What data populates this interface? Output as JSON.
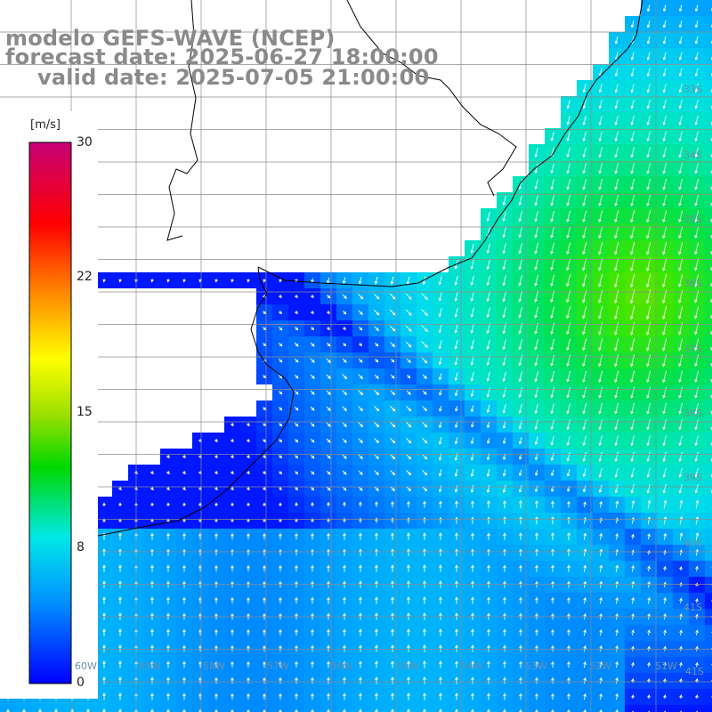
{
  "title": {
    "line1": "modelo GEFS-WAVE (NCEP)",
    "line2": "forecast date: 2025-06-27 18:00:00",
    "line3": "valid date: 2025-07-05 21:00:00"
  },
  "colorbar": {
    "unit": "[m/s]",
    "ticks": [
      "30",
      "22",
      "15",
      "8",
      "0"
    ],
    "tick_values": [
      30,
      22,
      15,
      8,
      0
    ],
    "range": [
      0,
      30
    ],
    "colors": [
      "#0000ff",
      "#00a0ff",
      "#00e8e8",
      "#00d000",
      "#a0e000",
      "#ffff00",
      "#ff8000",
      "#ff0000",
      "#c80078"
    ]
  },
  "map_labels": {
    "lat": [
      "33S",
      "34S",
      "35S",
      "36S",
      "37S",
      "38S",
      "39S",
      "40S",
      "41S"
    ],
    "lon": [
      "60W",
      "59W",
      "58W",
      "57W",
      "56W",
      "55W",
      "54W",
      "53W",
      "52W",
      "51W"
    ]
  },
  "colors": {
    "land": "#ffffff",
    "grid": "#8c8c8c",
    "coast": "#000000",
    "arrow": "#ffffff",
    "title": "#8a8a8a"
  }
}
